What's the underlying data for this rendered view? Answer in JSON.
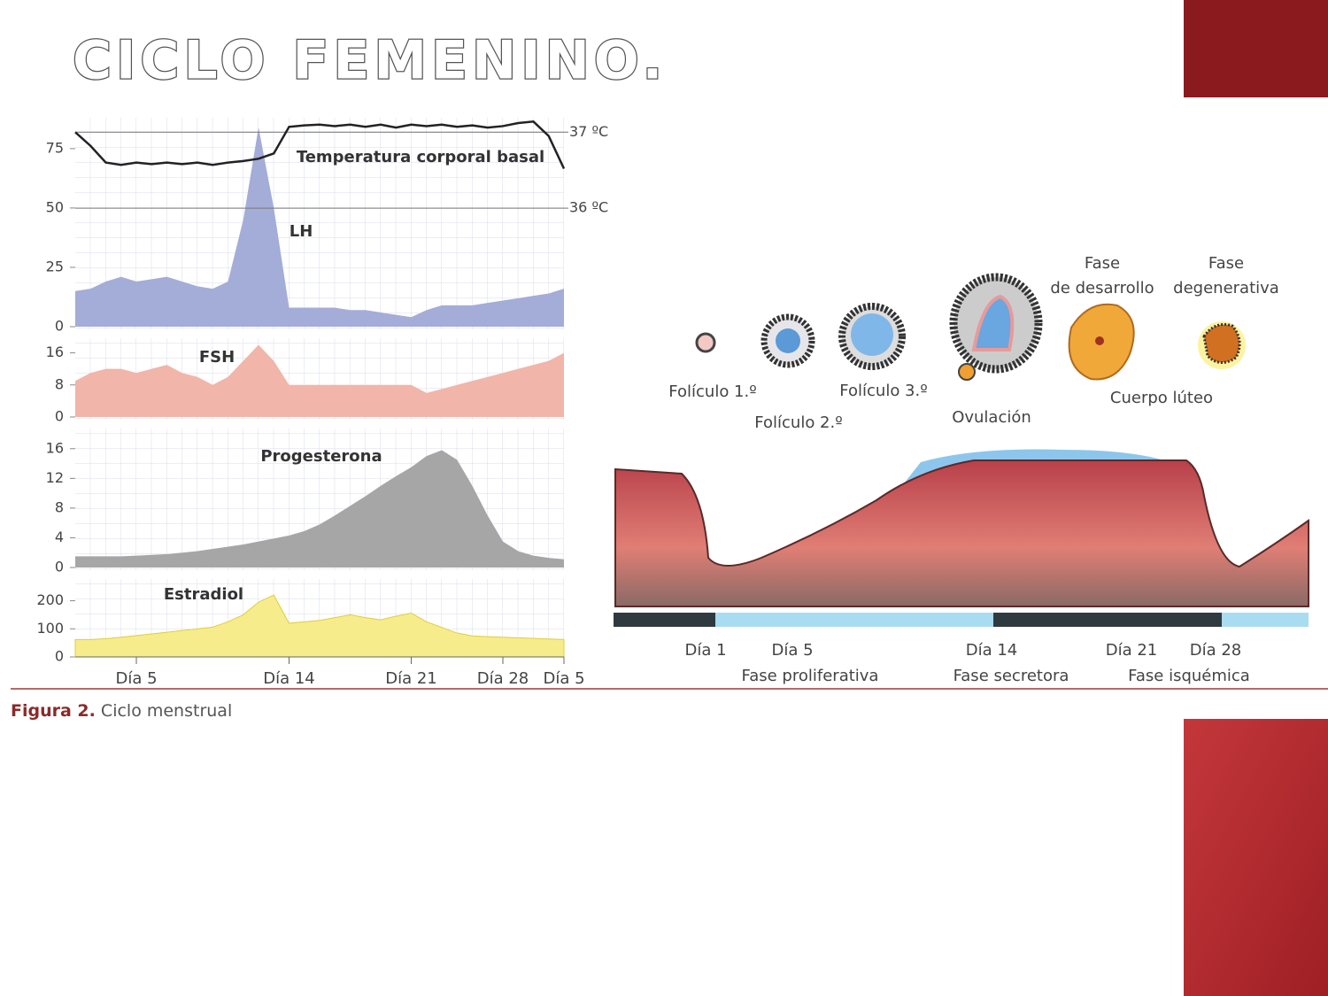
{
  "title": "CICLO FEMENINO.",
  "caption": {
    "label": "Figura 2.",
    "text": "Ciclo menstrual"
  },
  "chart_data": {
    "type": "area",
    "categories": [
      null,
      null,
      null,
      null,
      "Día 5",
      null,
      null,
      null,
      null,
      null,
      null,
      null,
      null,
      null,
      "Día 14",
      null,
      null,
      null,
      null,
      null,
      null,
      null,
      "Día 21",
      null,
      null,
      null,
      null,
      null,
      "Día 28",
      null,
      null,
      null,
      "Día 5"
    ],
    "y2lim": [
      34.44,
      37.19
    ],
    "y2ticks": [
      {
        "value": 37,
        "label": "37 ºC"
      },
      {
        "value": 36,
        "label": "36 ºC"
      }
    ],
    "series": [
      {
        "name": "LH",
        "color": "#a4acd8",
        "ylim": [
          0,
          88
        ],
        "yticks": [
          0,
          25,
          50,
          75
        ],
        "values": [
          15,
          16,
          19,
          21,
          19,
          20,
          21,
          19,
          17,
          16,
          19,
          45,
          84,
          50,
          8,
          8,
          8,
          8,
          7,
          7,
          6,
          5,
          4,
          7,
          9,
          9,
          9,
          10,
          11,
          12,
          13,
          14,
          16
        ]
      },
      {
        "name": "FSH",
        "color": "#f1b5aa",
        "ylim": [
          0,
          19
        ],
        "yticks": [
          0,
          8,
          16
        ],
        "values": [
          9,
          11,
          12,
          12,
          11,
          12,
          13,
          11,
          10,
          8,
          10,
          14,
          18,
          14,
          8,
          8,
          8,
          8,
          8,
          8,
          8,
          8,
          8,
          6,
          7,
          8,
          9,
          10,
          11,
          12,
          13,
          14,
          16
        ]
      },
      {
        "name": "Progesterona",
        "color": "#a6a6a6",
        "ylim": [
          0,
          18
        ],
        "yticks": [
          0,
          4,
          8,
          12,
          16
        ],
        "values": [
          1.5,
          1.5,
          1.5,
          1.5,
          1.6,
          1.7,
          1.8,
          2,
          2.2,
          2.5,
          2.8,
          3.1,
          3.5,
          3.9,
          4.3,
          4.9,
          5.8,
          7,
          8.3,
          9.6,
          11,
          12.3,
          13.5,
          15,
          15.8,
          14.5,
          11,
          7,
          3.5,
          2.2,
          1.6,
          1.3,
          1.1
        ]
      },
      {
        "name": "Estradiol",
        "color": "#f6ec8c",
        "ylim": [
          0,
          290
        ],
        "yticks": [
          0,
          100,
          200
        ],
        "values": [
          62,
          62,
          65,
          70,
          76,
          82,
          88,
          94,
          100,
          106,
          125,
          150,
          195,
          220,
          120,
          125,
          130,
          140,
          150,
          140,
          132,
          145,
          156,
          125,
          105,
          85,
          75,
          72,
          70,
          68,
          66,
          64,
          62
        ]
      },
      {
        "name": "Temperatura corporal basal",
        "color": "#222222",
        "axis": "y2",
        "values": [
          37,
          36.82,
          36.6,
          36.57,
          36.6,
          36.58,
          36.6,
          36.58,
          36.6,
          36.57,
          36.6,
          36.62,
          36.65,
          36.72,
          37.07,
          37.09,
          37.1,
          37.08,
          37.1,
          37.07,
          37.1,
          37.06,
          37.1,
          37.08,
          37.1,
          37.07,
          37.09,
          37.06,
          37.08,
          37.12,
          37.14,
          36.95,
          36.52
        ]
      }
    ]
  },
  "diagram": {
    "follicles": [
      "Folículo 1.º",
      "Folículo 2.º",
      "Folículo 3.º"
    ],
    "ovulation": "Ovulación",
    "development": [
      "Fase",
      "de desarrollo"
    ],
    "degenerative": [
      "Fase",
      "degenerativa"
    ],
    "corpus_luteum": "Cuerpo lúteo",
    "days": [
      "Día 1",
      "Día 5",
      "Día 14",
      "Día 21",
      "Día 28"
    ],
    "phases": [
      "Fase proliferativa",
      "Fase secretora",
      "Fase isquémica"
    ]
  }
}
